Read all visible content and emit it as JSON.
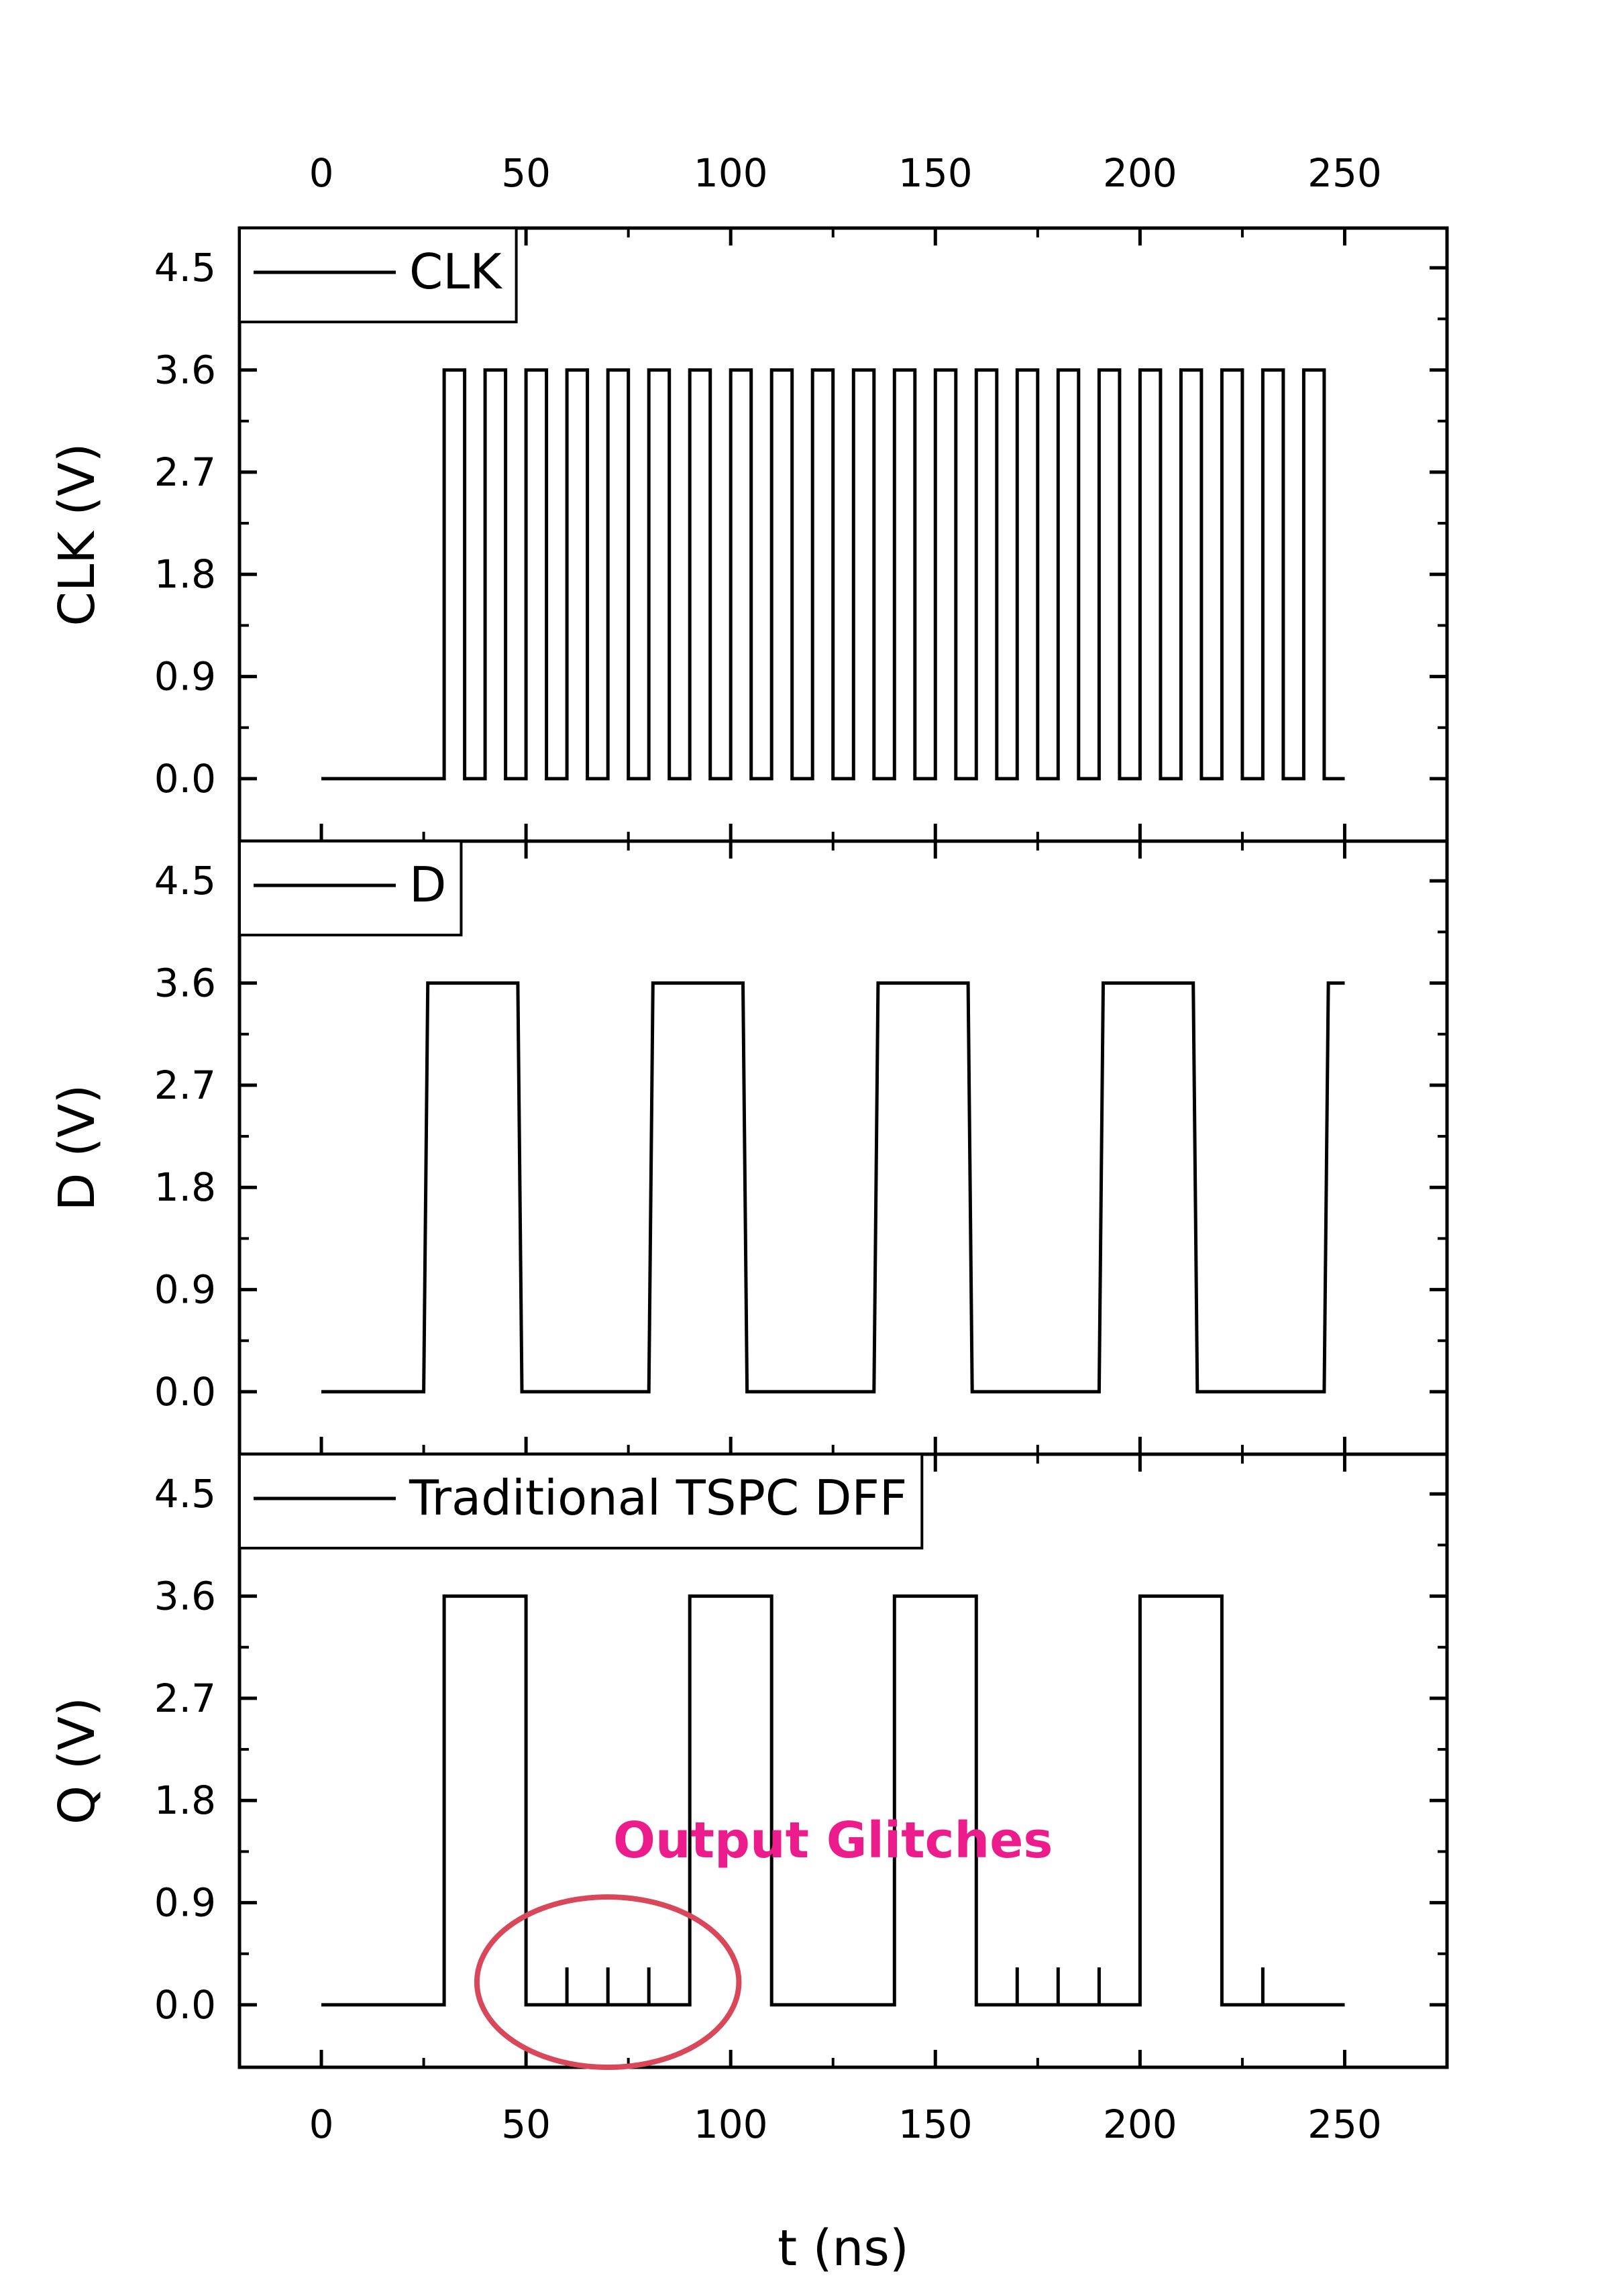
{
  "chart_data": {
    "type": "line",
    "xlabel": "t (ns)",
    "xlim": [
      -20,
      275
    ],
    "xticks": [
      0,
      50,
      100,
      150,
      200,
      250
    ],
    "xtick_labels": [
      "0",
      "50",
      "100",
      "150",
      "200",
      "250"
    ],
    "ylim": [
      -0.55,
      4.85
    ],
    "yticks": [
      0.0,
      0.9,
      1.8,
      2.7,
      3.6,
      4.5
    ],
    "ytick_labels": [
      "0.0",
      "0.9",
      "1.8",
      "2.7",
      "3.6",
      "4.5"
    ],
    "panels": [
      {
        "name": "clk",
        "ylabel": "CLK (V)",
        "legend": "CLK",
        "series": [
          {
            "name": "CLK",
            "x": [
              0,
              30,
              30,
              35,
              35,
              40,
              40,
              45,
              45,
              50,
              50,
              55,
              55,
              60,
              60,
              65,
              65,
              70,
              70,
              75,
              75,
              80,
              80,
              85,
              85,
              90,
              90,
              95,
              95,
              100,
              100,
              105,
              105,
              110,
              110,
              115,
              115,
              120,
              120,
              125,
              125,
              130,
              130,
              135,
              135,
              140,
              140,
              145,
              145,
              150,
              150,
              155,
              155,
              160,
              160,
              165,
              165,
              170,
              170,
              175,
              175,
              180,
              180,
              185,
              185,
              190,
              190,
              195,
              195,
              200,
              200,
              205,
              205,
              210,
              210,
              215,
              215,
              220,
              220,
              225,
              225,
              230,
              230,
              235,
              235,
              240,
              240,
              245,
              245,
              250
            ],
            "y": [
              0,
              0,
              3.6,
              3.6,
              0,
              0,
              3.6,
              3.6,
              0,
              0,
              3.6,
              3.6,
              0,
              0,
              3.6,
              3.6,
              0,
              0,
              3.6,
              3.6,
              0,
              0,
              3.6,
              3.6,
              0,
              0,
              3.6,
              3.6,
              0,
              0,
              3.6,
              3.6,
              0,
              0,
              3.6,
              3.6,
              0,
              0,
              3.6,
              3.6,
              0,
              0,
              3.6,
              3.6,
              0,
              0,
              3.6,
              3.6,
              0,
              0,
              3.6,
              3.6,
              0,
              0,
              3.6,
              3.6,
              0,
              0,
              3.6,
              3.6,
              0,
              0,
              3.6,
              3.6,
              0,
              0,
              3.6,
              3.6,
              0,
              0,
              3.6,
              3.6,
              0,
              0,
              3.6,
              3.6,
              0,
              0,
              3.6,
              3.6,
              0,
              0,
              3.6,
              3.6,
              0,
              0,
              3.6,
              3.6,
              0,
              0
            ]
          }
        ]
      },
      {
        "name": "d",
        "ylabel": "D (V)",
        "legend": "D",
        "series": [
          {
            "name": "D",
            "x": [
              0,
              25,
              26,
              48,
              49,
              80,
              81,
              103,
              104,
              135,
              136,
              158,
              159,
              190,
              191,
              213,
              214,
              245,
              246,
              250
            ],
            "y": [
              0,
              0,
              3.6,
              3.6,
              0,
              0,
              3.6,
              3.6,
              0,
              0,
              3.6,
              3.6,
              0,
              0,
              3.6,
              3.6,
              0,
              0,
              3.6,
              3.6
            ]
          }
        ]
      },
      {
        "name": "q",
        "ylabel": "Q (V)",
        "legend": "Traditional TSPC DFF",
        "series": [
          {
            "name": "Traditional TSPC DFF",
            "x": [
              0,
              30,
              30,
              50,
              50,
              60,
              60,
              60,
              70,
              70,
              70,
              80,
              80,
              80,
              90,
              90,
              110,
              110,
              140,
              140,
              160,
              160,
              170,
              170,
              170,
              180,
              180,
              180,
              190,
              190,
              190,
              200,
              200,
              220,
              220,
              230,
              230,
              230,
              250
            ],
            "y": [
              0,
              0,
              3.6,
              3.6,
              0,
              0,
              0.33,
              0,
              0,
              0.33,
              0,
              0,
              0.33,
              0,
              0,
              3.6,
              3.6,
              0,
              0,
              3.6,
              3.6,
              0,
              0,
              0.33,
              0,
              0,
              0.33,
              0,
              0,
              0.33,
              0,
              0,
              3.6,
              3.6,
              0,
              0,
              0.33,
              0,
              0
            ]
          }
        ],
        "annotation": {
          "text": "Output Glitches",
          "text_color": "#ec1c8c",
          "ellipse_color": "#d9485a",
          "ellipse_center": [
            70,
            0.2
          ],
          "ellipse_radii_data": [
            32,
            0.75
          ]
        }
      }
    ]
  }
}
